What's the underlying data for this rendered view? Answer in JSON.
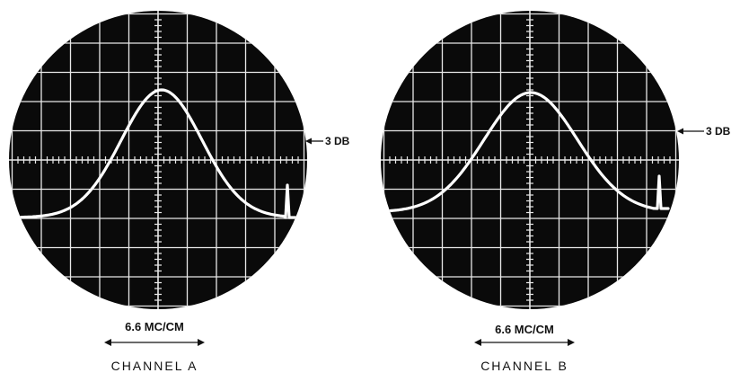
{
  "panels": [
    {
      "id": "a",
      "db_marker": "3 DB",
      "scale_label": "6.6 MC/CM",
      "channel_label": "CHANNEL A"
    },
    {
      "id": "b",
      "db_marker": "3 DB",
      "scale_label": "6.6 MC/CM",
      "channel_label": "CHANNEL B"
    }
  ],
  "colors": {
    "screen": "#0a0a0a",
    "grid": "#e8e8e8",
    "trace": "#ffffff",
    "ink": "#111111"
  }
}
